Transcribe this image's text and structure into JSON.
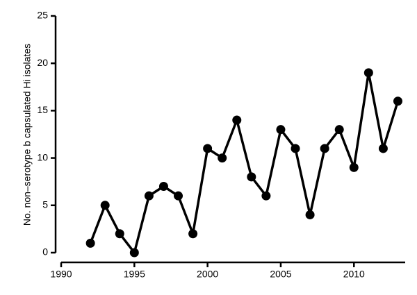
{
  "chart_data": {
    "type": "line",
    "y_label": "No. non–serotype b capsulated Hi isolates",
    "x": [
      1992,
      1993,
      1994,
      1995,
      1996,
      1997,
      1998,
      1999,
      2000,
      2001,
      2002,
      2003,
      2004,
      2005,
      2006,
      2007,
      2008,
      2009,
      2010,
      2011,
      2012,
      2013
    ],
    "values": [
      1,
      5,
      2,
      0,
      6,
      7,
      6,
      2,
      11,
      10,
      14,
      8,
      6,
      13,
      11,
      4,
      11,
      13,
      9,
      19,
      11,
      16
    ],
    "color": "#000000",
    "xlim": [
      1990,
      2013.5
    ],
    "xticks": [
      1990,
      1995,
      2000,
      2005,
      2010
    ],
    "ylim": [
      0,
      25
    ],
    "yticks": [
      0,
      5,
      10,
      15,
      20,
      25
    ]
  }
}
